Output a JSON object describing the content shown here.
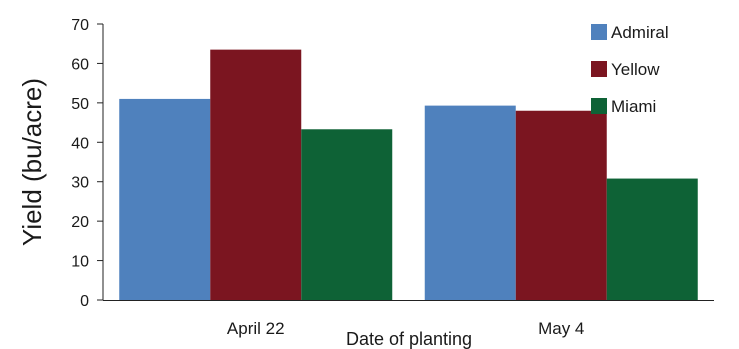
{
  "chart_data": {
    "type": "bar",
    "title": "",
    "xlabel": "Date of planting",
    "ylabel": "Yield (bu/acre)",
    "categories": [
      "April 22",
      "May 4"
    ],
    "series": [
      {
        "name": "Admiral",
        "color": "#4F81BD",
        "values": [
          51,
          49.3
        ]
      },
      {
        "name": "Yellow",
        "color": "#7B1520",
        "values": [
          63.5,
          48
        ]
      },
      {
        "name": "Miami",
        "color": "#0E6236",
        "values": [
          43.3,
          30.8
        ]
      }
    ],
    "ylim": [
      0,
      70
    ],
    "yticks": [
      0,
      10,
      20,
      30,
      40,
      50,
      60,
      70
    ],
    "grid": false,
    "legend_position": "top-right"
  }
}
